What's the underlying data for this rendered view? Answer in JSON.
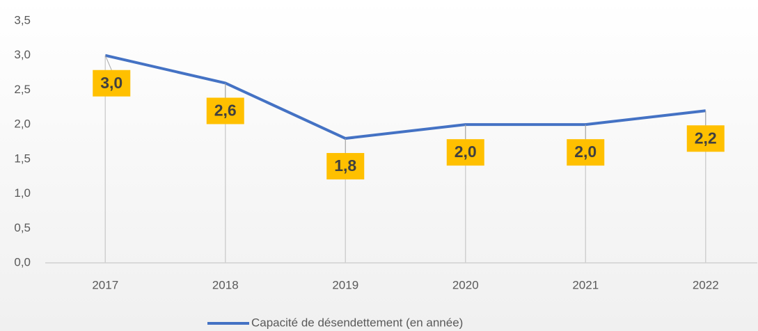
{
  "chart_data": {
    "type": "line",
    "categories": [
      "2017",
      "2018",
      "2019",
      "2020",
      "2021",
      "2022"
    ],
    "series": [
      {
        "name": "Capacité de désendettement (en année)",
        "color": "#4472c4",
        "values": [
          3.0,
          2.6,
          1.8,
          2.0,
          2.0,
          2.2
        ],
        "value_labels": [
          "3,0",
          "2,6",
          "1,8",
          "2,0",
          "2,0",
          "2,2"
        ],
        "label_color": "#ffc000"
      }
    ],
    "ylim": [
      0,
      3.5
    ],
    "yticks": [
      {
        "value": 0,
        "label": "0,0"
      },
      {
        "value": 0.5,
        "label": "0,5"
      },
      {
        "value": 1,
        "label": "1,0"
      },
      {
        "value": 1.5,
        "label": "1,5"
      },
      {
        "value": 2,
        "label": "2,0"
      },
      {
        "value": 2.5,
        "label": "2,5"
      },
      {
        "value": 3,
        "label": "3,0"
      },
      {
        "value": 3.5,
        "label": "3,5"
      }
    ],
    "legend": "bottom"
  }
}
